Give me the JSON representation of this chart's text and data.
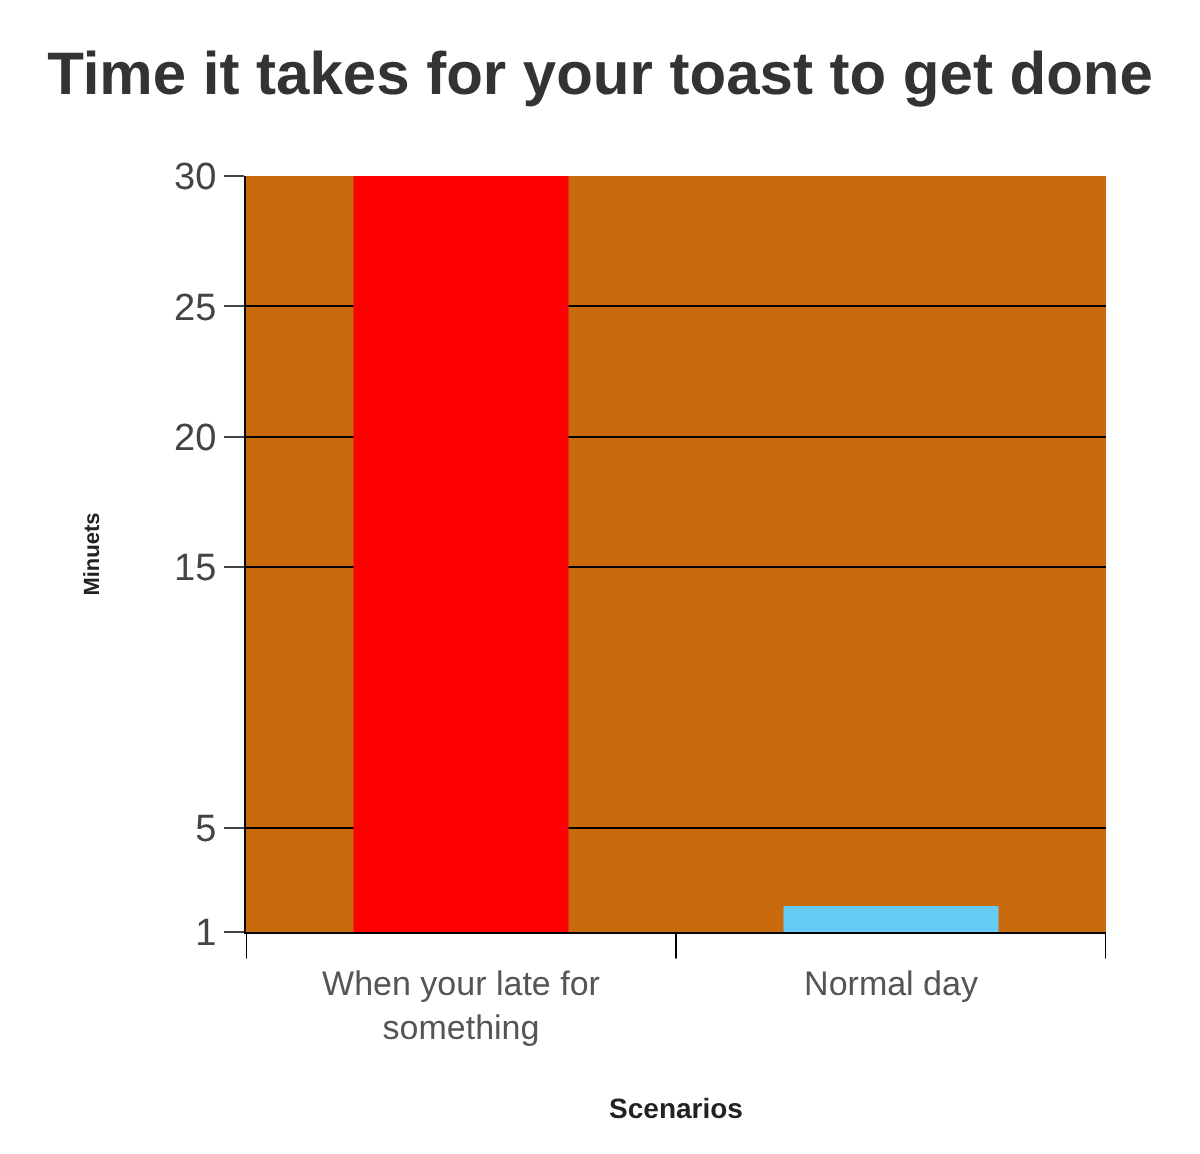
{
  "chart_data": {
    "type": "bar",
    "title": "Time it takes for your toast to get done",
    "xlabel": "Scenarios",
    "ylabel": "Minuets",
    "categories": [
      "When your late for something",
      "Normal day"
    ],
    "values": [
      30,
      2
    ],
    "colors": [
      "#ff0000",
      "#66ccf5"
    ],
    "ylim": [
      1,
      30
    ],
    "yticks": [
      1,
      5,
      15,
      20,
      25,
      30
    ],
    "grid": "y"
  }
}
